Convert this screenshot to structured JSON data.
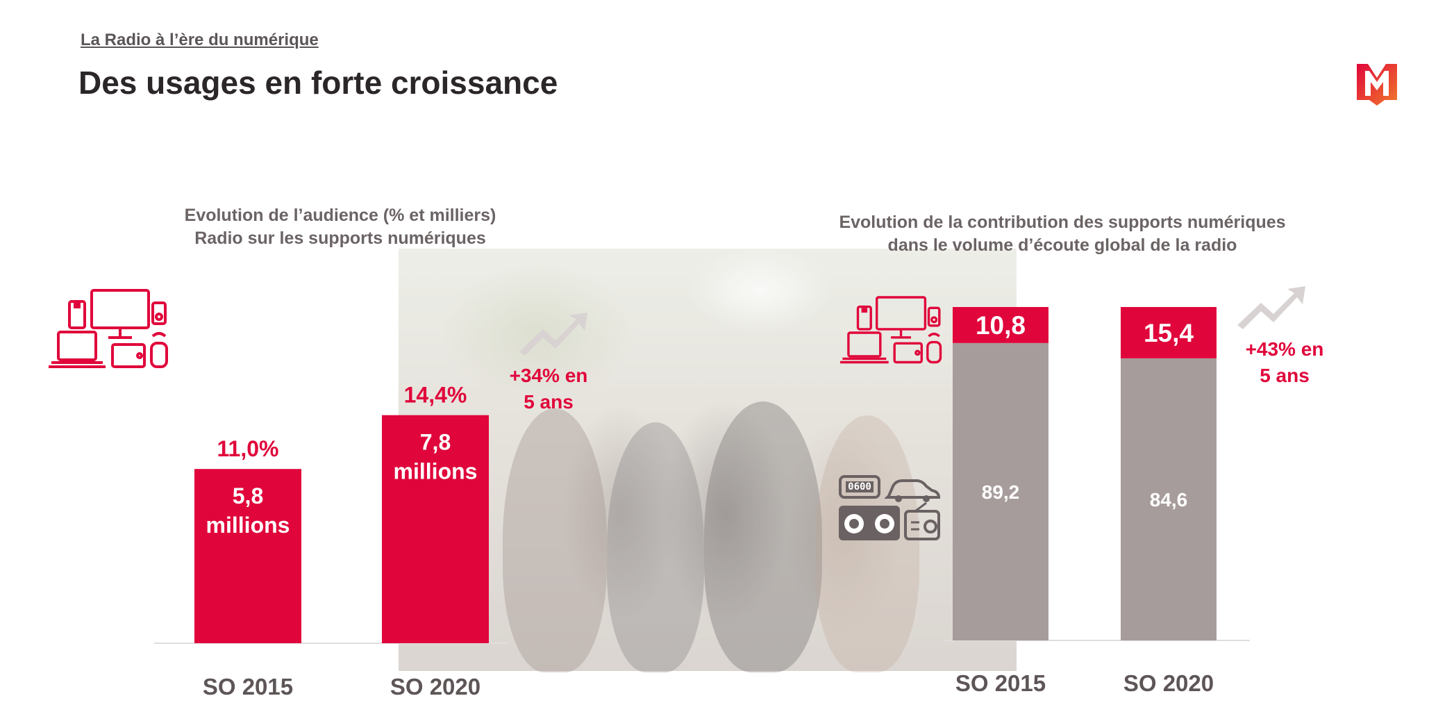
{
  "header": {
    "breadcrumb": "La Radio à l’ère du numérique",
    "title": "Des usages en forte croissance"
  },
  "colors": {
    "accent": "#e0063b",
    "grey_bar": "#a79c9c",
    "text": "#2b2627"
  },
  "icons": [
    "devices-icon",
    "devices-icon-small",
    "traditional-radio-devices-icon",
    "growth-arrow-icon",
    "media-logo-icon"
  ],
  "chart_data": [
    {
      "type": "bar",
      "title": "Evolution de l’audience (% et milliers)\nRadio sur les supports numériques",
      "categories": [
        "SO 2015",
        "SO 2020"
      ],
      "values": [
        11.0,
        14.4
      ],
      "value_labels": [
        "11,0%",
        "14,4%"
      ],
      "inbar_labels": [
        [
          "5,8",
          "millions"
        ],
        [
          "7,8",
          "millions"
        ]
      ],
      "growth_label": [
        "+34% en",
        "5 ans"
      ],
      "unit": "%",
      "ylim": [
        0,
        15
      ]
    },
    {
      "type": "bar",
      "stacked": true,
      "title": "Evolution de la contribution des supports numériques\ndans le volume d’écoute global de la radio",
      "categories": [
        "SO 2015",
        "SO 2020"
      ],
      "series": [
        {
          "name": "Supports numériques",
          "values": [
            10.8,
            15.4
          ],
          "labels": [
            "10,8",
            "15,4"
          ],
          "color": "#e0063b"
        },
        {
          "name": "Supports traditionnels",
          "values": [
            89.2,
            84.6
          ],
          "labels": [
            "89,2",
            "84,6"
          ],
          "color": "#a79c9c"
        }
      ],
      "growth_label": [
        "+43% en",
        "5 ans"
      ],
      "ylim": [
        0,
        100
      ]
    }
  ]
}
